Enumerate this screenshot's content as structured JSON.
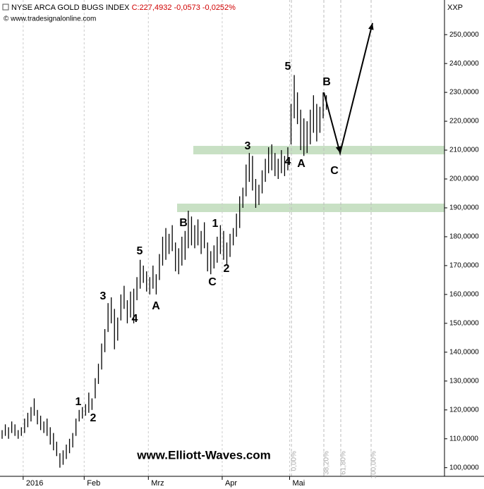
{
  "chart_data": {
    "type": "hlbar",
    "title": "NYSE ARCA GOLD BUGS INDEX",
    "subtitle": "C:227,4932 -0,0573 -0,0252%",
    "source": "© www.tradesignalonline.com",
    "axis_label": "XXP",
    "watermark": "www.Elliott-Waves.com",
    "color": "#000000",
    "categories": [
      null,
      null,
      null,
      null,
      null,
      null,
      null,
      "2016",
      null,
      null,
      null,
      null,
      null,
      null,
      null,
      null,
      null,
      null,
      null,
      null,
      null,
      null,
      null,
      null,
      null,
      null,
      "Feb",
      null,
      null,
      null,
      null,
      null,
      null,
      null,
      null,
      null,
      null,
      null,
      null,
      null,
      null,
      null,
      null,
      null,
      null,
      null,
      "Mrz",
      null,
      null,
      null,
      null,
      null,
      null,
      null,
      null,
      null,
      null,
      null,
      null,
      null,
      null,
      null,
      null,
      null,
      null,
      null,
      null,
      null,
      null,
      "Apr",
      null,
      null,
      null,
      null,
      null,
      null,
      null,
      null,
      null,
      null,
      null,
      null,
      null,
      null,
      null,
      null,
      null,
      null,
      null,
      null,
      "Mai",
      null,
      null,
      null,
      null,
      null,
      null,
      null,
      null,
      null,
      null,
      null
    ],
    "high": [
      113,
      115,
      114,
      116,
      115,
      113,
      114,
      117,
      119,
      121,
      124,
      120,
      118,
      116,
      117,
      114,
      112,
      109,
      105,
      106,
      108,
      110,
      112,
      117,
      120,
      121,
      122,
      126,
      124,
      131,
      136,
      143,
      148,
      157,
      159,
      155,
      152,
      160,
      163,
      158,
      161,
      162,
      166,
      172,
      170,
      168,
      166,
      170,
      167,
      174,
      180,
      183,
      181,
      184,
      178,
      176,
      180,
      182,
      189,
      187,
      184,
      186,
      182,
      185,
      178,
      175,
      177,
      180,
      184,
      182,
      178,
      181,
      183,
      188,
      194,
      197,
      205,
      209,
      208,
      200,
      198,
      203,
      207,
      211,
      212,
      209,
      207,
      210,
      208,
      211,
      226,
      236,
      230,
      224,
      221,
      220,
      224,
      229,
      226,
      225,
      230,
      229
    ],
    "low": [
      110,
      111,
      110,
      112,
      111,
      110,
      111,
      112,
      114,
      116,
      118,
      115,
      113,
      112,
      111,
      108,
      106,
      104,
      100,
      101,
      103,
      105,
      107,
      111,
      116,
      117,
      118,
      119,
      120,
      124,
      129,
      134,
      140,
      147,
      150,
      141,
      144,
      151,
      155,
      150,
      152,
      150,
      158,
      162,
      164,
      161,
      160,
      162,
      160,
      165,
      170,
      172,
      174,
      175,
      168,
      167,
      170,
      172,
      176,
      177,
      176,
      177,
      174,
      176,
      168,
      167,
      169,
      171,
      174,
      172,
      170,
      173,
      177,
      180,
      183,
      190,
      194,
      199,
      196,
      190,
      191,
      195,
      199,
      202,
      203,
      201,
      200,
      202,
      201,
      203,
      212,
      221,
      219,
      210,
      208,
      209,
      212,
      216,
      213,
      216,
      221,
      224
    ],
    "ylim": [
      97,
      262
    ],
    "yticks": [
      {
        "value": 100,
        "label": "100,0000"
      },
      {
        "value": 110,
        "label": "110,0000"
      },
      {
        "value": 120,
        "label": "120,0000"
      },
      {
        "value": 130,
        "label": "130,0000"
      },
      {
        "value": 140,
        "label": "140,0000"
      },
      {
        "value": 150,
        "label": "150,0000"
      },
      {
        "value": 160,
        "label": "160,0000"
      },
      {
        "value": 170,
        "label": "170,0000"
      },
      {
        "value": 180,
        "label": "180,0000"
      },
      {
        "value": 190,
        "label": "190,0000"
      },
      {
        "value": 200,
        "label": "200,0000"
      },
      {
        "value": 210,
        "label": "210,0000"
      },
      {
        "value": 220,
        "label": "220,0000"
      },
      {
        "value": 230,
        "label": "230,0000"
      },
      {
        "value": 240,
        "label": "240,0000"
      },
      {
        "value": 250,
        "label": "250,0000"
      }
    ],
    "zones": [
      190,
      210
    ],
    "zone_color": "#c8e0c4",
    "projection": [
      230,
      209,
      254
    ],
    "wave_labels": [
      "5",
      "B",
      "3",
      "4",
      "A",
      "C",
      "B",
      "1",
      "2",
      "C",
      "5",
      "3",
      "4",
      "A",
      "1",
      "2"
    ],
    "fib_labels": [
      "0,00%",
      "38,20%",
      "61,80%",
      "100,00%"
    ]
  }
}
